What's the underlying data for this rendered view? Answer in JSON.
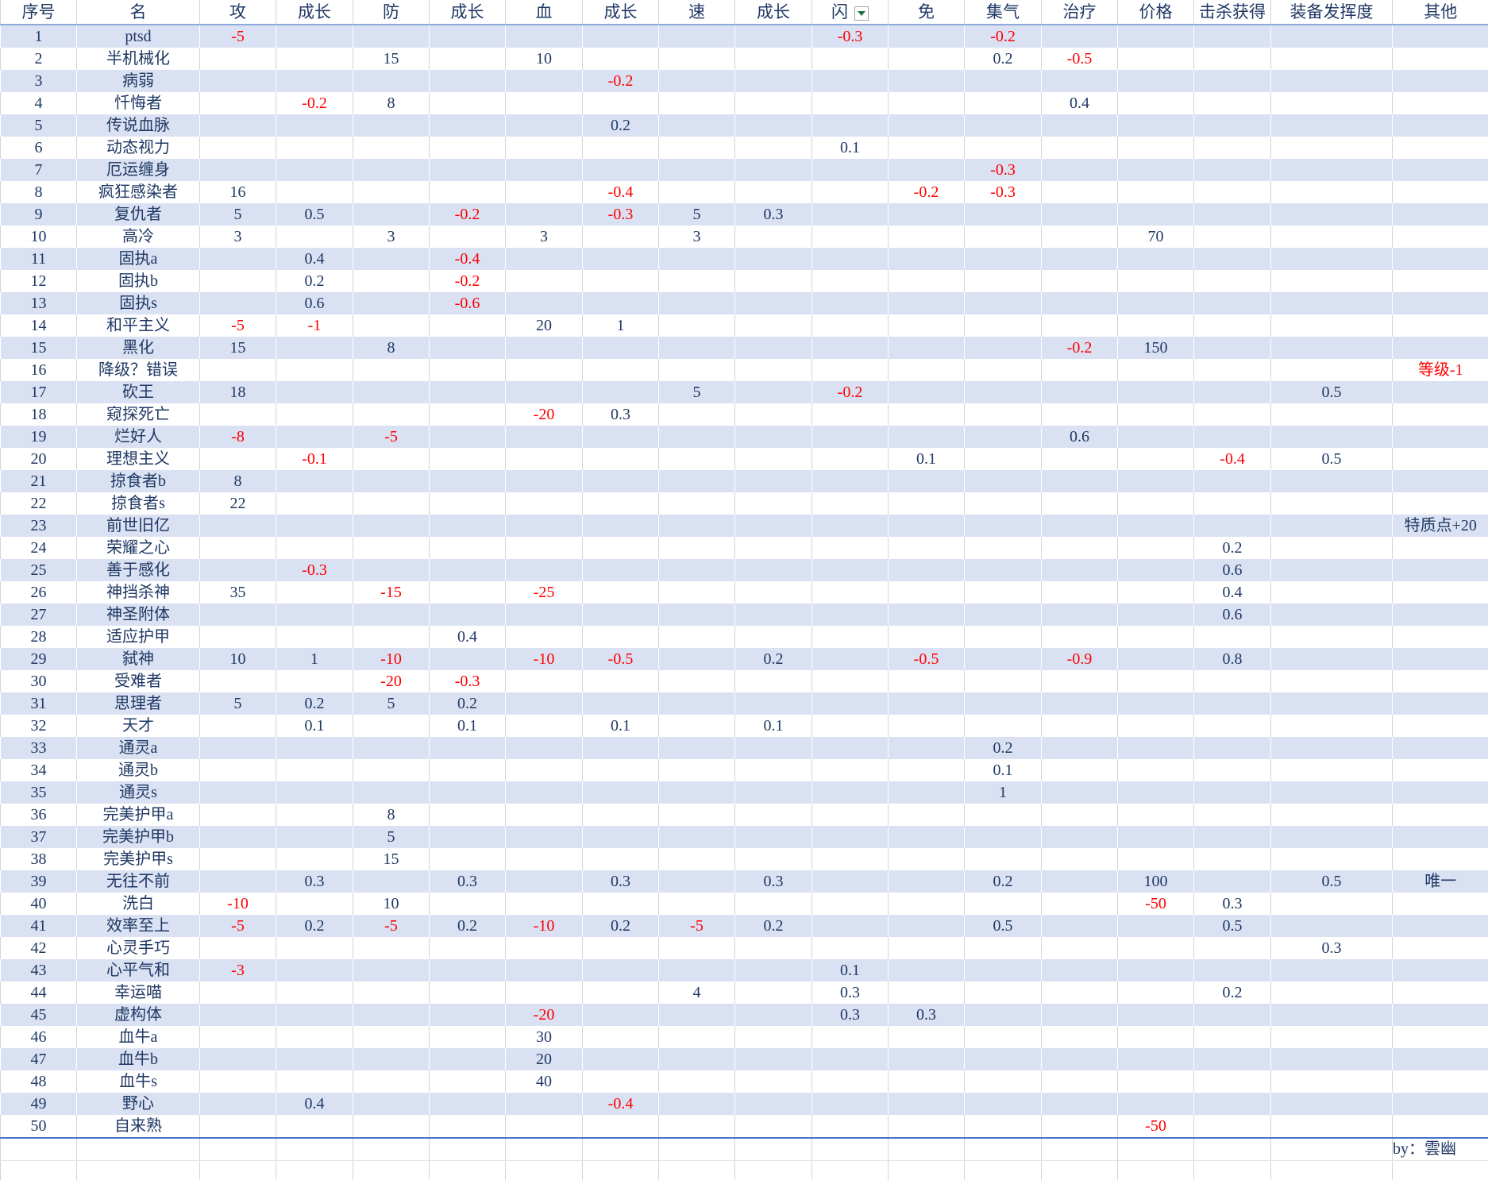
{
  "table": {
    "header": [
      "序号",
      "名",
      "攻",
      "成长",
      "防",
      "成长",
      "血",
      "成长",
      "速",
      "成长",
      "闪",
      "免",
      "集气",
      "治疗",
      "价格",
      "击杀获得",
      "装备发挥度",
      "其他"
    ],
    "rows": [
      [
        1,
        "ptsd",
        -5,
        null,
        null,
        null,
        null,
        null,
        null,
        null,
        -0.3,
        null,
        -0.2,
        null,
        null,
        null,
        null,
        null
      ],
      [
        2,
        "半机械化",
        null,
        null,
        15,
        null,
        10,
        null,
        null,
        null,
        null,
        null,
        0.2,
        -0.5,
        null,
        null,
        null,
        null
      ],
      [
        3,
        "病弱",
        null,
        null,
        null,
        null,
        null,
        -0.2,
        null,
        null,
        null,
        null,
        null,
        null,
        null,
        null,
        null,
        null
      ],
      [
        4,
        "忏悔者",
        null,
        -0.2,
        8,
        null,
        null,
        null,
        null,
        null,
        null,
        null,
        null,
        0.4,
        null,
        null,
        null,
        null
      ],
      [
        5,
        "传说血脉",
        null,
        null,
        null,
        null,
        null,
        0.2,
        null,
        null,
        null,
        null,
        null,
        null,
        null,
        null,
        null,
        null
      ],
      [
        6,
        "动态视力",
        null,
        null,
        null,
        null,
        null,
        null,
        null,
        null,
        0.1,
        null,
        null,
        null,
        null,
        null,
        null,
        null
      ],
      [
        7,
        "厄运缠身",
        null,
        null,
        null,
        null,
        null,
        null,
        null,
        null,
        null,
        null,
        -0.3,
        null,
        null,
        null,
        null,
        null
      ],
      [
        8,
        "疯狂感染者",
        16,
        null,
        null,
        null,
        null,
        -0.4,
        null,
        null,
        null,
        -0.2,
        -0.3,
        null,
        null,
        null,
        null,
        null
      ],
      [
        9,
        "复仇者",
        5,
        0.5,
        null,
        -0.2,
        null,
        -0.3,
        5,
        0.3,
        null,
        null,
        null,
        null,
        null,
        null,
        null,
        null
      ],
      [
        10,
        "高冷",
        3,
        null,
        3,
        null,
        3,
        null,
        3,
        null,
        null,
        null,
        null,
        null,
        70,
        null,
        null,
        null
      ],
      [
        11,
        "固执a",
        null,
        0.4,
        null,
        -0.4,
        null,
        null,
        null,
        null,
        null,
        null,
        null,
        null,
        null,
        null,
        null,
        null
      ],
      [
        12,
        "固执b",
        null,
        0.2,
        null,
        -0.2,
        null,
        null,
        null,
        null,
        null,
        null,
        null,
        null,
        null,
        null,
        null,
        null
      ],
      [
        13,
        "固执s",
        null,
        0.6,
        null,
        -0.6,
        null,
        null,
        null,
        null,
        null,
        null,
        null,
        null,
        null,
        null,
        null,
        null
      ],
      [
        14,
        "和平主义",
        -5,
        -1,
        null,
        null,
        20,
        1,
        null,
        null,
        null,
        null,
        null,
        null,
        null,
        null,
        null,
        null
      ],
      [
        15,
        "黑化",
        15,
        null,
        8,
        null,
        null,
        null,
        null,
        null,
        null,
        null,
        null,
        -0.2,
        150,
        null,
        null,
        null
      ],
      [
        16,
        "降级？错误",
        null,
        null,
        null,
        null,
        null,
        null,
        null,
        null,
        null,
        null,
        null,
        null,
        null,
        null,
        null,
        "等级-1"
      ],
      [
        17,
        "砍王",
        18,
        null,
        null,
        null,
        null,
        null,
        5,
        null,
        -0.2,
        null,
        null,
        null,
        null,
        null,
        0.5,
        null
      ],
      [
        18,
        "窥探死亡",
        null,
        null,
        null,
        null,
        -20,
        0.3,
        null,
        null,
        null,
        null,
        null,
        null,
        null,
        null,
        null,
        null
      ],
      [
        19,
        "烂好人",
        -8,
        null,
        -5,
        null,
        null,
        null,
        null,
        null,
        null,
        null,
        null,
        0.6,
        null,
        null,
        null,
        null
      ],
      [
        20,
        "理想主义",
        null,
        -0.1,
        null,
        null,
        null,
        null,
        null,
        null,
        null,
        0.1,
        null,
        null,
        null,
        -0.4,
        0.5,
        null
      ],
      [
        21,
        "掠食者b",
        8,
        null,
        null,
        null,
        null,
        null,
        null,
        null,
        null,
        null,
        null,
        null,
        null,
        null,
        null,
        null
      ],
      [
        22,
        "掠食者s",
        22,
        null,
        null,
        null,
        null,
        null,
        null,
        null,
        null,
        null,
        null,
        null,
        null,
        null,
        null,
        null
      ],
      [
        23,
        "前世旧亿",
        null,
        null,
        null,
        null,
        null,
        null,
        null,
        null,
        null,
        null,
        null,
        null,
        null,
        null,
        null,
        "特质点+20"
      ],
      [
        24,
        "荣耀之心",
        null,
        null,
        null,
        null,
        null,
        null,
        null,
        null,
        null,
        null,
        null,
        null,
        null,
        0.2,
        null,
        null
      ],
      [
        25,
        "善于感化",
        null,
        -0.3,
        null,
        null,
        null,
        null,
        null,
        null,
        null,
        null,
        null,
        null,
        null,
        0.6,
        null,
        null
      ],
      [
        26,
        "神挡杀神",
        35,
        null,
        -15,
        null,
        -25,
        null,
        null,
        null,
        null,
        null,
        null,
        null,
        null,
        0.4,
        null,
        null
      ],
      [
        27,
        "神圣附体",
        null,
        null,
        null,
        null,
        null,
        null,
        null,
        null,
        null,
        null,
        null,
        null,
        null,
        0.6,
        null,
        null
      ],
      [
        28,
        "适应护甲",
        null,
        null,
        null,
        0.4,
        null,
        null,
        null,
        null,
        null,
        null,
        null,
        null,
        null,
        null,
        null,
        null
      ],
      [
        29,
        "弑神",
        10,
        1,
        -10,
        null,
        -10,
        -0.5,
        null,
        0.2,
        null,
        -0.5,
        null,
        -0.9,
        null,
        0.8,
        null,
        null
      ],
      [
        30,
        "受难者",
        null,
        null,
        -20,
        -0.3,
        null,
        null,
        null,
        null,
        null,
        null,
        null,
        null,
        null,
        null,
        null,
        null
      ],
      [
        31,
        "思理者",
        5,
        0.2,
        5,
        0.2,
        null,
        null,
        null,
        null,
        null,
        null,
        null,
        null,
        null,
        null,
        null,
        null
      ],
      [
        32,
        "天才",
        null,
        0.1,
        null,
        0.1,
        null,
        0.1,
        null,
        0.1,
        null,
        null,
        null,
        null,
        null,
        null,
        null,
        null
      ],
      [
        33,
        "通灵a",
        null,
        null,
        null,
        null,
        null,
        null,
        null,
        null,
        null,
        null,
        0.2,
        null,
        null,
        null,
        null,
        null
      ],
      [
        34,
        "通灵b",
        null,
        null,
        null,
        null,
        null,
        null,
        null,
        null,
        null,
        null,
        0.1,
        null,
        null,
        null,
        null,
        null
      ],
      [
        35,
        "通灵s",
        null,
        null,
        null,
        null,
        null,
        null,
        null,
        null,
        null,
        null,
        1,
        null,
        null,
        null,
        null,
        null
      ],
      [
        36,
        "完美护甲a",
        null,
        null,
        8,
        null,
        null,
        null,
        null,
        null,
        null,
        null,
        null,
        null,
        null,
        null,
        null,
        null
      ],
      [
        37,
        "完美护甲b",
        null,
        null,
        5,
        null,
        null,
        null,
        null,
        null,
        null,
        null,
        null,
        null,
        null,
        null,
        null,
        null
      ],
      [
        38,
        "完美护甲s",
        null,
        null,
        15,
        null,
        null,
        null,
        null,
        null,
        null,
        null,
        null,
        null,
        null,
        null,
        null,
        null
      ],
      [
        39,
        "无往不前",
        null,
        0.3,
        null,
        0.3,
        null,
        0.3,
        null,
        0.3,
        null,
        null,
        0.2,
        null,
        100,
        null,
        0.5,
        "唯一"
      ],
      [
        40,
        "洗白",
        -10,
        null,
        10,
        null,
        null,
        null,
        null,
        null,
        null,
        null,
        null,
        null,
        -50,
        0.3,
        null,
        null
      ],
      [
        41,
        "效率至上",
        -5,
        0.2,
        -5,
        0.2,
        -10,
        0.2,
        -5,
        0.2,
        null,
        null,
        0.5,
        null,
        null,
        0.5,
        null,
        null
      ],
      [
        42,
        "心灵手巧",
        null,
        null,
        null,
        null,
        null,
        null,
        null,
        null,
        null,
        null,
        null,
        null,
        null,
        null,
        0.3,
        null
      ],
      [
        43,
        "心平气和",
        -3,
        null,
        null,
        null,
        null,
        null,
        null,
        null,
        0.1,
        null,
        null,
        null,
        null,
        null,
        null,
        null
      ],
      [
        44,
        "幸运喵",
        null,
        null,
        null,
        null,
        null,
        null,
        4,
        null,
        0.3,
        null,
        null,
        null,
        null,
        0.2,
        null,
        null
      ],
      [
        45,
        "虚构体",
        null,
        null,
        null,
        null,
        -20,
        null,
        null,
        null,
        0.3,
        0.3,
        null,
        null,
        null,
        null,
        null,
        null
      ],
      [
        46,
        "血牛a",
        null,
        null,
        null,
        null,
        30,
        null,
        null,
        null,
        null,
        null,
        null,
        null,
        null,
        null,
        null,
        null
      ],
      [
        47,
        "血牛b",
        null,
        null,
        null,
        null,
        20,
        null,
        null,
        null,
        null,
        null,
        null,
        null,
        null,
        null,
        null,
        null
      ],
      [
        48,
        "血牛s",
        null,
        null,
        null,
        null,
        40,
        null,
        null,
        null,
        null,
        null,
        null,
        null,
        null,
        null,
        null,
        null
      ],
      [
        49,
        "野心",
        null,
        0.4,
        null,
        null,
        null,
        -0.4,
        null,
        null,
        null,
        null,
        null,
        null,
        null,
        null,
        null,
        null
      ],
      [
        50,
        "自来熟",
        null,
        null,
        null,
        null,
        null,
        null,
        null,
        null,
        null,
        null,
        null,
        null,
        -50,
        null,
        null,
        null
      ]
    ],
    "credit": "by：雲幽"
  }
}
